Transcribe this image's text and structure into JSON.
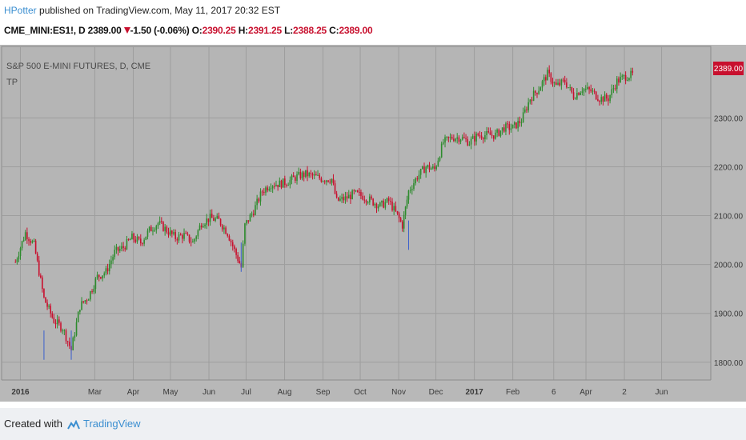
{
  "header": {
    "author": "HPotter",
    "published": " published on TradingView.com, May 11, 2017 20:32 EST",
    "symbol": "CME_MINI:ES1!, D",
    "last": "2389.00",
    "change": "-1.50 (-0.06%)",
    "o_label": "O:",
    "o_value": "2390.25",
    "h_label": "H:",
    "h_value": "2391.25",
    "l_label": "L:",
    "l_value": "2388.25",
    "c_label": "C:",
    "c_value": "2389.00"
  },
  "chart_data": {
    "type": "candlestick",
    "title": "S&P 500 E-MINI FUTURES, D, CME",
    "indicator_label": "TP",
    "last_price_label": "2389.00",
    "ylim": [
      1780,
      2430
    ],
    "y_ticks": [
      "1800.00",
      "1900.00",
      "2000.00",
      "2100.00",
      "2200.00",
      "2300.00"
    ],
    "x_ticks": [
      "2016",
      "Mar",
      "Apr",
      "May",
      "Jun",
      "Jul",
      "Aug",
      "Sep",
      "Oct",
      "Nov",
      "Dec",
      "2017",
      "Feb",
      "6",
      "Apr",
      "2",
      "Jun"
    ],
    "x_bold_ticks": [
      "2016",
      "2017"
    ],
    "grid": true,
    "series": [
      {
        "x": [
          "2015-12-28",
          "2016-01-05",
          "2016-01-12",
          "2016-01-20",
          "2016-01-28",
          "2016-02-04",
          "2016-02-11",
          "2016-02-18",
          "2016-02-25",
          "2016-03-03",
          "2016-03-10",
          "2016-03-17",
          "2016-03-24",
          "2016-03-31",
          "2016-04-07",
          "2016-04-14",
          "2016-04-21",
          "2016-04-28",
          "2016-05-05",
          "2016-05-12",
          "2016-05-19",
          "2016-05-26",
          "2016-06-02",
          "2016-06-09",
          "2016-06-16",
          "2016-06-23",
          "2016-06-27",
          "2016-06-30",
          "2016-07-07",
          "2016-07-14",
          "2016-07-21",
          "2016-07-28",
          "2016-08-04",
          "2016-08-11",
          "2016-08-18",
          "2016-08-25",
          "2016-09-01",
          "2016-09-08",
          "2016-09-12",
          "2016-09-19",
          "2016-09-26",
          "2016-10-03",
          "2016-10-10",
          "2016-10-17",
          "2016-10-24",
          "2016-10-31",
          "2016-11-04",
          "2016-11-09",
          "2016-11-16",
          "2016-11-23",
          "2016-11-30",
          "2016-12-07",
          "2016-12-14",
          "2016-12-21",
          "2016-12-28",
          "2017-01-04",
          "2017-01-11",
          "2017-01-18",
          "2017-01-25",
          "2017-02-01",
          "2017-02-08",
          "2017-02-15",
          "2017-02-22",
          "2017-03-01",
          "2017-03-08",
          "2017-03-15",
          "2017-03-22",
          "2017-03-29",
          "2017-04-05",
          "2017-04-12",
          "2017-04-19",
          "2017-04-26",
          "2017-05-03",
          "2017-05-10"
        ],
        "close": [
          2005,
          2065,
          2040,
          1930,
          1885,
          1870,
          1825,
          1915,
          1935,
          1975,
          1985,
          2025,
          2035,
          2055,
          2045,
          2070,
          2085,
          2070,
          2055,
          2060,
          2045,
          2085,
          2095,
          2090,
          2065,
          2020,
          1995,
          2080,
          2110,
          2150,
          2165,
          2165,
          2170,
          2180,
          2185,
          2180,
          2175,
          2175,
          2130,
          2135,
          2145,
          2140,
          2130,
          2120,
          2130,
          2100,
          2080,
          2150,
          2180,
          2200,
          2195,
          2250,
          2260,
          2260,
          2250,
          2265,
          2265,
          2265,
          2280,
          2280,
          2295,
          2340,
          2360,
          2390,
          2365,
          2375,
          2345,
          2360,
          2355,
          2340,
          2340,
          2375,
          2385,
          2389
        ]
      }
    ]
  },
  "footer": {
    "created_with": "Created with",
    "brand": "TradingView"
  },
  "colors": {
    "plot_bg": "#b5b5b5",
    "grid": "#9e9e9e",
    "up": "#2e8b2e",
    "down": "#c8102e",
    "mid": "#3a5fcd",
    "last_price_bg": "#c8102e"
  }
}
